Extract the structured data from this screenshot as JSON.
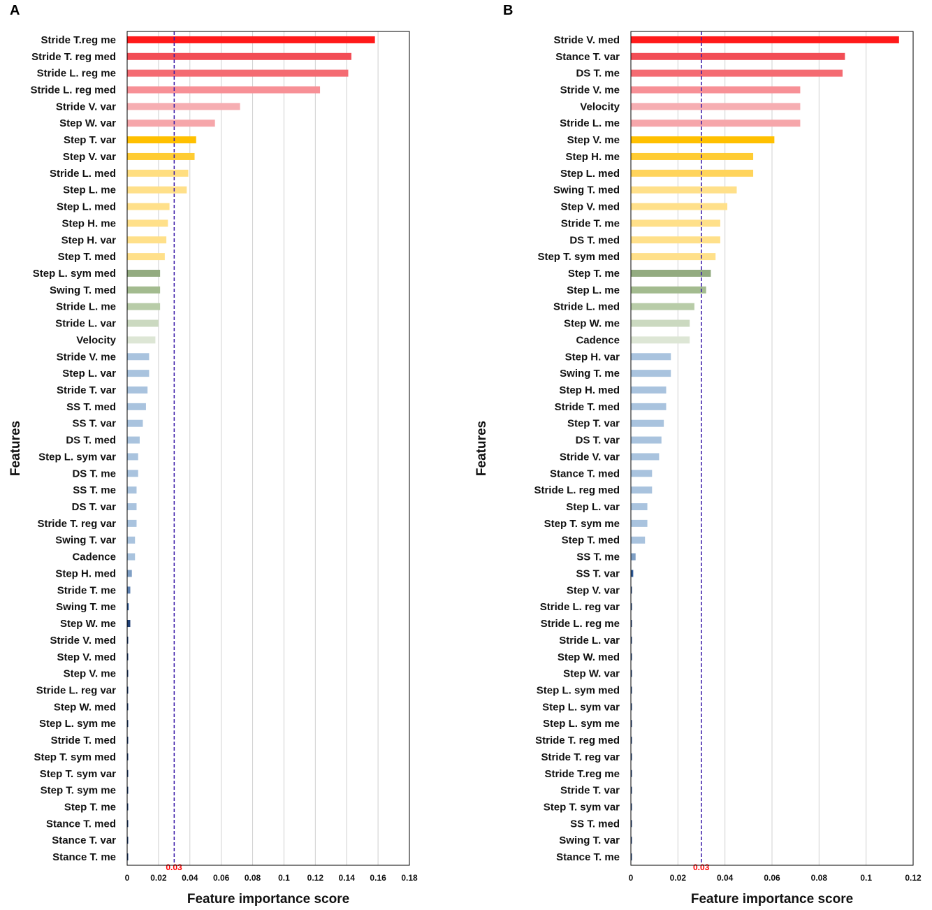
{
  "chart_data": [
    {
      "type": "bar",
      "orientation": "horizontal",
      "panel": "A",
      "xlabel": "Feature importance score",
      "ylabel": "Features",
      "xlim": [
        0,
        0.18
      ],
      "xticks": [
        0,
        0.02,
        0.04,
        0.06,
        0.08,
        0.1,
        0.12,
        0.14,
        0.16,
        0.18
      ],
      "xtick_labels": [
        "0",
        "0.02",
        "0.04",
        "0.06",
        "0.08",
        "0.1",
        "0.12",
        "0.14",
        "0.16",
        "0.18"
      ],
      "grid": true,
      "threshold": {
        "value": 0.03,
        "label": "0.03",
        "color": "#3a1aa8"
      },
      "categories": [
        "Stride T.reg me",
        "Stride T. reg med",
        "Stride L. reg me",
        "Stride L. reg med",
        "Stride V. var",
        "Step W. var",
        "Step T. var",
        "Step V. var",
        "Stride L. med",
        "Step L. me",
        "Step L. med",
        "Step H. me",
        "Step H. var",
        "Step T. med",
        "Step L. sym med",
        "Swing T. med",
        "Stride L. me",
        "Stride L. var",
        "Velocity",
        "Stride V. me",
        "Step L. var",
        "Stride T. var",
        "SS T. med",
        "SS T. var",
        "DS T. med",
        "Step L. sym var",
        "DS T. me",
        "SS T. me",
        "DS T. var",
        "Stride T. reg var",
        "Swing T. var",
        "Cadence",
        "Step H. med",
        "Stride T. me",
        "Swing T. me",
        "Step W. me",
        "Stride V. med",
        "Step V. med",
        "Step V. me",
        "Stride L. reg var",
        "Step W. med",
        "Step L. sym me",
        "Stride T. med",
        "Step T. sym med",
        "Step T. sym var",
        "Step T. sym me",
        "Step T. me",
        "Stance T. med",
        "Stance T. var",
        "Stance T. me"
      ],
      "values": [
        0.158,
        0.143,
        0.141,
        0.123,
        0.072,
        0.056,
        0.044,
        0.043,
        0.039,
        0.038,
        0.027,
        0.026,
        0.025,
        0.024,
        0.021,
        0.021,
        0.021,
        0.02,
        0.018,
        0.014,
        0.014,
        0.013,
        0.012,
        0.01,
        0.008,
        0.007,
        0.007,
        0.006,
        0.006,
        0.006,
        0.005,
        0.005,
        0.003,
        0.002,
        0.001,
        0.002,
        0.0005,
        0.0005,
        0.0005,
        0.0005,
        0.0005,
        0.0005,
        0.0005,
        0.0005,
        0.0005,
        0.0005,
        0.0005,
        0.0005,
        0.0005,
        0.0005
      ],
      "colors": [
        "#ff1a1a",
        "#f24d55",
        "#f46b72",
        "#f79096",
        "#f6aeb2",
        "#f6a6aa",
        "#ffc000",
        "#ffcc33",
        "#ffde80",
        "#ffe08a",
        "#ffe08a",
        "#ffe08a",
        "#ffe08a",
        "#ffe08a",
        "#93ab80",
        "#a3bb8f",
        "#b8cca8",
        "#cbd9c0",
        "#dde6d5",
        "#a9c3de",
        "#a9c3de",
        "#a9c3de",
        "#a9c3de",
        "#a9c3de",
        "#a9c3de",
        "#a9c3de",
        "#a9c3de",
        "#a9c3de",
        "#a9c3de",
        "#a9c3de",
        "#a9c3de",
        "#a9c3de",
        "#7f9fc4",
        "#5b7fb0",
        "#2e5a96",
        "#1f3f74",
        "#1f3f74",
        "#1f3f74",
        "#1f3f74",
        "#1f3f74",
        "#1f3f74",
        "#1f3f74",
        "#1f3f74",
        "#1f3f74",
        "#1f3f74",
        "#1f3f74",
        "#1f3f74",
        "#1f3f74",
        "#1f3f74",
        "#1f3f74"
      ]
    },
    {
      "type": "bar",
      "orientation": "horizontal",
      "panel": "B",
      "xlabel": "Feature importance score",
      "ylabel": "Features",
      "xlim": [
        0,
        0.12
      ],
      "xticks": [
        0,
        0.02,
        0.04,
        0.06,
        0.08,
        0.1,
        0.12
      ],
      "xtick_labels": [
        "0",
        "0.02",
        "0.04",
        "0.06",
        "0.08",
        "0.1",
        "0.12"
      ],
      "grid": true,
      "threshold": {
        "value": 0.03,
        "label": "0.03",
        "color": "#3a1aa8"
      },
      "categories": [
        "Stride V. med",
        "Stance T. var",
        "DS T. me",
        "Stride V. me",
        "Velocity",
        "Stride L. me",
        "Step V. me",
        "Step H. me",
        "Step L. med",
        "Swing T. med",
        "Step V. med",
        "Stride T. me",
        "DS T. med",
        "Step T. sym med",
        "Step T. me",
        "Step L. me",
        "Stride L. med",
        "Step W. me",
        "Cadence",
        "Step H. var",
        "Swing T. me",
        "Step H. med",
        "Stride T. med",
        "Step T. var",
        "DS T. var",
        "Stride V. var",
        "Stance T. med",
        "Stride L. reg med",
        "Step L. var",
        "Step T. sym me",
        "Step T. med",
        "SS T. me",
        "SS T. var",
        "Step V. var",
        "Stride L. reg var",
        "Stride L. reg me",
        "Stride L. var",
        "Step W. med",
        "Step W. var",
        "Step L. sym med",
        "Step L. sym var",
        "Step L. sym me",
        "Stride T. reg med",
        "Stride T. reg var",
        "Stride T.reg me",
        "Stride T. var",
        "Step T. sym var",
        "SS T. med",
        "Swing T. var",
        "Stance T. me"
      ],
      "values": [
        0.114,
        0.091,
        0.09,
        0.072,
        0.072,
        0.072,
        0.061,
        0.052,
        0.052,
        0.045,
        0.041,
        0.038,
        0.038,
        0.036,
        0.034,
        0.032,
        0.027,
        0.025,
        0.025,
        0.017,
        0.017,
        0.015,
        0.015,
        0.014,
        0.013,
        0.012,
        0.009,
        0.009,
        0.007,
        0.007,
        0.006,
        0.002,
        0.001,
        0.0004,
        0.0004,
        0.0004,
        0.0004,
        0.0004,
        0.0004,
        0.0004,
        0.0004,
        0.0004,
        0.0004,
        0.0004,
        0.0004,
        0.0004,
        0.0004,
        0.0004,
        0.0004,
        0.0004
      ],
      "colors": [
        "#ff1a1a",
        "#f24d55",
        "#f46b72",
        "#f79096",
        "#f6aeb2",
        "#f6a6aa",
        "#ffc000",
        "#ffcc33",
        "#ffd45c",
        "#ffe08a",
        "#ffe08a",
        "#ffe08a",
        "#ffe08a",
        "#ffe08a",
        "#93ab80",
        "#a3bb8f",
        "#b8cca8",
        "#cbd9c0",
        "#dde6d5",
        "#a9c3de",
        "#a9c3de",
        "#a9c3de",
        "#a9c3de",
        "#a9c3de",
        "#a9c3de",
        "#a9c3de",
        "#a9c3de",
        "#a9c3de",
        "#a9c3de",
        "#a9c3de",
        "#a9c3de",
        "#7f9fc4",
        "#2e5a96",
        "#1f3f74",
        "#1f3f74",
        "#1f3f74",
        "#1f3f74",
        "#1f3f74",
        "#1f3f74",
        "#1f3f74",
        "#1f3f74",
        "#1f3f74",
        "#1f3f74",
        "#1f3f74",
        "#1f3f74",
        "#1f3f74",
        "#1f3f74",
        "#1f3f74",
        "#1f3f74",
        "#1f3f74"
      ]
    }
  ]
}
